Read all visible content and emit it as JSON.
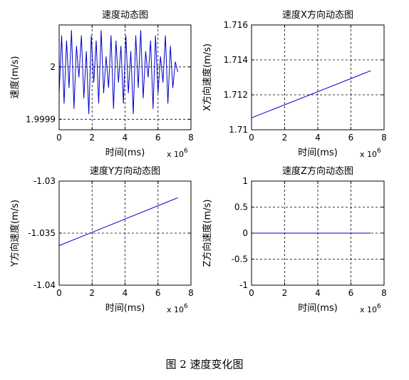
{
  "figure_caption": "图 2  速度变化图",
  "chart_data": [
    {
      "type": "line",
      "title": "速度动态图",
      "xlabel": "时间(ms)",
      "ylabel": "速度(m/s)",
      "x_multiplier": "x 10",
      "x_multiplier_exp": "6",
      "xlim": [
        0,
        8
      ],
      "ylim": [
        1.99988,
        2.00008
      ],
      "xticks": [
        0,
        2,
        4,
        6,
        8
      ],
      "xticklabels": [
        "0",
        "2",
        "4",
        "6",
        "8"
      ],
      "yticks": [
        1.9999,
        2.0
      ],
      "yticklabels": [
        "1.9999",
        "2"
      ],
      "grid": true,
      "color": "#0000cc",
      "series": [
        {
          "x": [
            0.0,
            0.15,
            0.3,
            0.45,
            0.6,
            0.75,
            0.9,
            1.05,
            1.2,
            1.35,
            1.5,
            1.65,
            1.8,
            1.95,
            2.1,
            2.25,
            2.4,
            2.55,
            2.7,
            2.85,
            3.0,
            3.15,
            3.3,
            3.45,
            3.6,
            3.75,
            3.9,
            4.05,
            4.2,
            4.35,
            4.5,
            4.65,
            4.8,
            4.95,
            5.1,
            5.25,
            5.4,
            5.55,
            5.7,
            5.85,
            6.0,
            6.15,
            6.3,
            6.45,
            6.6,
            6.75,
            6.9,
            7.05,
            7.2
          ],
          "y": [
            1.99995,
            2.00006,
            1.99993,
            2.00005,
            1.99996,
            2.00007,
            1.99992,
            2.00004,
            1.99998,
            2.00006,
            1.99994,
            2.00003,
            1.99991,
            2.00006,
            1.99997,
            2.00005,
            1.99993,
            2.00007,
            1.99995,
            2.00002,
            1.99996,
            2.00006,
            1.99992,
            2.00005,
            1.99997,
            2.00004,
            1.99993,
            2.00006,
            1.99995,
            2.00003,
            1.99991,
            2.00006,
            1.99996,
            2.00007,
            1.99994,
            2.00003,
            1.99998,
            2.00005,
            1.99992,
            2.00006,
            1.99995,
            2.00002,
            1.99997,
            2.00006,
            1.99993,
            2.00004,
            1.99996,
            2.00001,
            1.99999
          ]
        }
      ]
    },
    {
      "type": "line",
      "title": "速度X方向动态图",
      "xlabel": "时间(ms)",
      "ylabel": "X方向速度(m/s)",
      "x_multiplier": "x 10",
      "x_multiplier_exp": "6",
      "xlim": [
        0,
        8
      ],
      "ylim": [
        1.71,
        1.716
      ],
      "xticks": [
        0,
        2,
        4,
        6,
        8
      ],
      "xticklabels": [
        "0",
        "2",
        "4",
        "6",
        "8"
      ],
      "yticks": [
        1.71,
        1.712,
        1.714,
        1.716
      ],
      "yticklabels": [
        "1.71",
        "1.712",
        "1.714",
        "1.716"
      ],
      "grid": true,
      "color": "#0000cc",
      "series": [
        {
          "x": [
            0,
            7.2
          ],
          "y": [
            1.71068,
            1.71338
          ]
        }
      ]
    },
    {
      "type": "line",
      "title": "速度Y方向动态图",
      "xlabel": "时间(ms)",
      "ylabel": "Y方向速度(m/s)",
      "x_multiplier": "x 10",
      "x_multiplier_exp": "6",
      "xlim": [
        0,
        8
      ],
      "ylim": [
        -1.04,
        -1.03
      ],
      "xticks": [
        0,
        2,
        4,
        6,
        8
      ],
      "xticklabels": [
        "0",
        "2",
        "4",
        "6",
        "8"
      ],
      "yticks": [
        -1.04,
        -1.035,
        -1.03
      ],
      "yticklabels": [
        "-1.04",
        "-1.035",
        "-1.03"
      ],
      "grid": true,
      "color": "#0000cc",
      "series": [
        {
          "x": [
            0,
            7.2
          ],
          "y": [
            -1.0362,
            -1.0316
          ]
        }
      ]
    },
    {
      "type": "line",
      "title": "速度Z方向动态图",
      "xlabel": "时间(ms)",
      "ylabel": "Z方向速度(m/s)",
      "x_multiplier": "x 10",
      "x_multiplier_exp": "6",
      "xlim": [
        0,
        8
      ],
      "ylim": [
        -1,
        1
      ],
      "xticks": [
        0,
        2,
        4,
        6,
        8
      ],
      "xticklabels": [
        "0",
        "2",
        "4",
        "6",
        "8"
      ],
      "yticks": [
        -1,
        -0.5,
        0,
        0.5,
        1
      ],
      "yticklabels": [
        "-1",
        "-0.5",
        "0",
        "0.5",
        "1"
      ],
      "grid": true,
      "color": "#0000cc",
      "series": [
        {
          "x": [
            0,
            7.2
          ],
          "y": [
            0,
            0
          ]
        }
      ]
    }
  ]
}
